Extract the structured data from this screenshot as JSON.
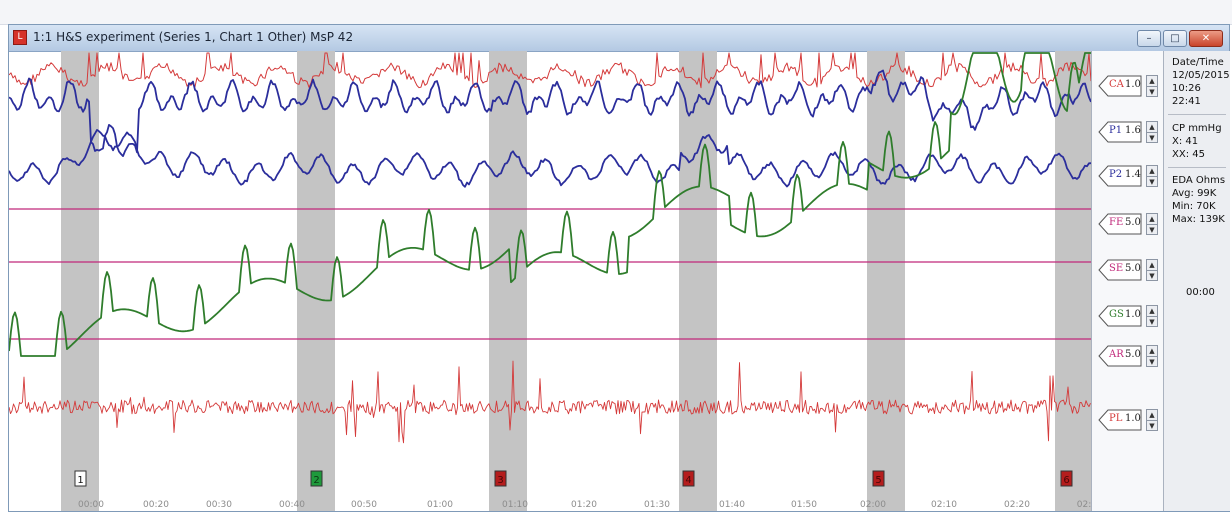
{
  "window": {
    "title": "1:1  H&S experiment (Series 1, Chart 1   Other) MsP 42",
    "controls": [
      "–",
      "□",
      "✕"
    ]
  },
  "channels": [
    {
      "name": "CA",
      "scale": "1.0",
      "color": "#d43a3a"
    },
    {
      "name": "P1",
      "scale": "1.6",
      "color": "#2b2e9c"
    },
    {
      "name": "P2",
      "scale": "1.4",
      "color": "#2b2e9c"
    },
    {
      "name": "FE",
      "scale": "5.0",
      "color": "#c0287a"
    },
    {
      "name": "SE",
      "scale": "5.0",
      "color": "#c0287a"
    },
    {
      "name": "GS",
      "scale": "1.0",
      "color": "#2f7d2c"
    },
    {
      "name": "AR",
      "scale": "5.0",
      "color": "#c0287a"
    },
    {
      "name": "PL",
      "scale": "1.0",
      "color": "#d43a3a"
    }
  ],
  "info": {
    "date_label": "Date/Time",
    "date": "12/05/2015",
    "time_start": "10:26",
    "time_elapsed": "22:41",
    "cp_label": "CP mmHg",
    "cp_x": "X:  41",
    "cp_xx": "XX: 45",
    "eda_label": "EDA Ohms",
    "eda_avg": "Avg: 99K",
    "eda_min": "Min:  70K",
    "eda_max": "Max: 139K",
    "clock": "00:00"
  },
  "markers": [
    {
      "label": "1",
      "fill": "#ffffff",
      "text": "#111111"
    },
    {
      "label": "2",
      "fill": "#1f9a3c",
      "text": "#0c3a14"
    },
    {
      "label": "3",
      "fill": "#b51d1d",
      "text": "#4a0606"
    },
    {
      "label": "4",
      "fill": "#b51d1d",
      "text": "#4a0606"
    },
    {
      "label": "5",
      "fill": "#b51d1d",
      "text": "#4a0606"
    },
    {
      "label": "6",
      "fill": "#b51d1d",
      "text": "#4a0606"
    }
  ],
  "time_ticks": [
    "00:00",
    "00:20",
    "00:30",
    "00:40",
    "00:50",
    "01:00",
    "01:10",
    "01:20",
    "01:30",
    "01:40",
    "01:50",
    "02:00",
    "02:10",
    "02:20",
    "02:"
  ],
  "colors": {
    "question_band": "#c4c4c4",
    "grid_line": "#c0287a",
    "tick_text": "#8c8c8c"
  }
}
